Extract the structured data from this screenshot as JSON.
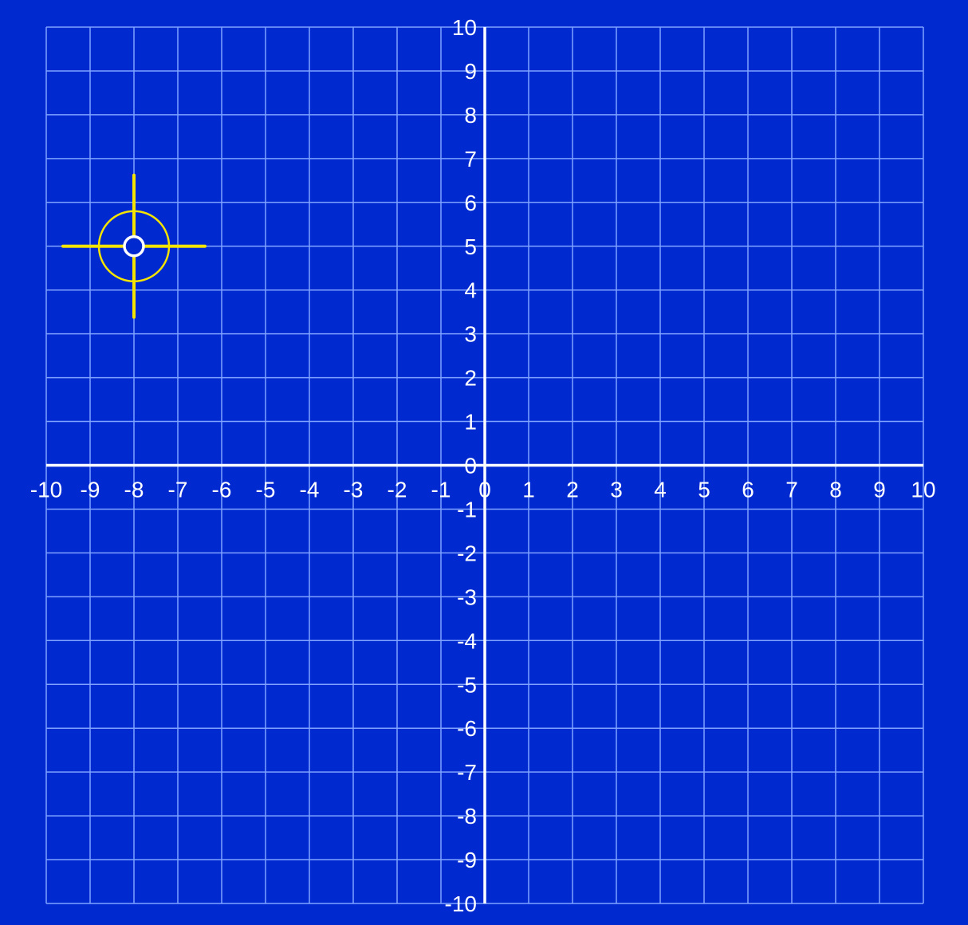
{
  "colors": {
    "background": "#0029d0",
    "grid_line": "#7fa3ff",
    "axis_line": "#ffffff",
    "tick_text": "#ffffff",
    "crosshair": "#f5e400",
    "point_outline": "#ffffff"
  },
  "chart_data": {
    "type": "scatter",
    "title": "",
    "xlabel": "",
    "ylabel": "",
    "xlim": [
      -10,
      10
    ],
    "ylim": [
      -10,
      10
    ],
    "grid": true,
    "grid_step": 1,
    "x_ticks": [
      "-10",
      "-9",
      "-8",
      "-7",
      "-6",
      "-5",
      "-4",
      "-3",
      "-2",
      "-1",
      "0",
      "1",
      "2",
      "3",
      "4",
      "5",
      "6",
      "7",
      "8",
      "9",
      "10"
    ],
    "y_ticks_positive": [
      "0",
      "1",
      "2",
      "3",
      "4",
      "5",
      "6",
      "7",
      "8",
      "9",
      "10"
    ],
    "y_ticks_negative": [
      "-1",
      "-2",
      "-3",
      "-4",
      "-5",
      "-6",
      "-7",
      "-8",
      "-9",
      "-10"
    ],
    "points": [
      {
        "x": -8,
        "y": 5
      }
    ],
    "crosshair_target": {
      "x": -8,
      "y": 5
    }
  }
}
